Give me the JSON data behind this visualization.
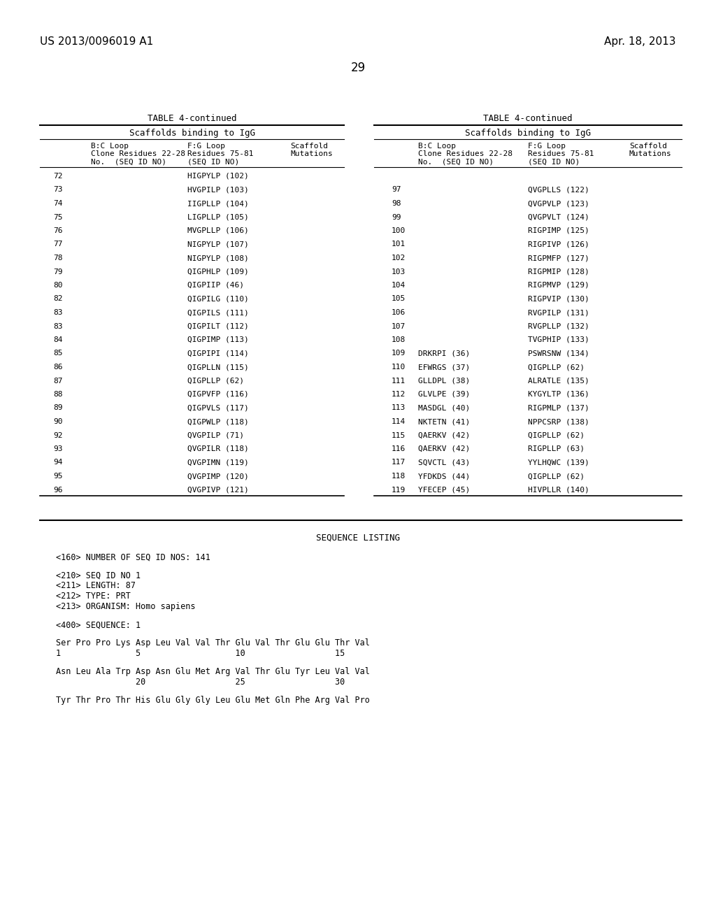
{
  "header_left": "US 2013/0096019 A1",
  "header_right": "Apr. 18, 2013",
  "page_number": "29",
  "table_title": "TABLE 4-continued",
  "table_subtitle": "Scaffolds binding to IgG",
  "left_table_rows": [
    [
      "72",
      "",
      "HIGPYLP (102)",
      ""
    ],
    [
      "73",
      "",
      "HVGPILP (103)",
      ""
    ],
    [
      "74",
      "",
      "IIGPLLP (104)",
      ""
    ],
    [
      "75",
      "",
      "LIGPLLP (105)",
      ""
    ],
    [
      "76",
      "",
      "MVGPLLP (106)",
      ""
    ],
    [
      "77",
      "",
      "NIGPYLP (107)",
      ""
    ],
    [
      "78",
      "",
      "NIGPYLP (108)",
      ""
    ],
    [
      "79",
      "",
      "QIGPHLP (109)",
      ""
    ],
    [
      "80",
      "",
      "QIGPIIP (46)",
      ""
    ],
    [
      "82",
      "",
      "QIGPILG (110)",
      ""
    ],
    [
      "83",
      "",
      "QIGPILS (111)",
      ""
    ],
    [
      "83",
      "",
      "QIGPILT (112)",
      ""
    ],
    [
      "84",
      "",
      "QIGPIMP (113)",
      ""
    ],
    [
      "85",
      "",
      "QIGPIPI (114)",
      ""
    ],
    [
      "86",
      "",
      "QIGPLLN (115)",
      ""
    ],
    [
      "87",
      "",
      "QIGPLLP (62)",
      ""
    ],
    [
      "88",
      "",
      "QIGPVFP (116)",
      ""
    ],
    [
      "89",
      "",
      "QIGPVLS (117)",
      ""
    ],
    [
      "90",
      "",
      "QIGPWLP (118)",
      ""
    ],
    [
      "92",
      "",
      "QVGPILP (71)",
      ""
    ],
    [
      "93",
      "",
      "QVGPILR (118)",
      ""
    ],
    [
      "94",
      "",
      "QVGPIMN (119)",
      ""
    ],
    [
      "95",
      "",
      "QVGPIMP (120)",
      ""
    ],
    [
      "96",
      "",
      "QVGPIVP (121)",
      ""
    ]
  ],
  "right_table_rows": [
    [
      "97",
      "",
      "QVGPLLS (122)",
      ""
    ],
    [
      "98",
      "",
      "QVGPVLP (123)",
      ""
    ],
    [
      "99",
      "",
      "QVGPVLT (124)",
      ""
    ],
    [
      "100",
      "",
      "RIGPIMP (125)",
      ""
    ],
    [
      "101",
      "",
      "RIGPIVP (126)",
      ""
    ],
    [
      "102",
      "",
      "RIGPMFP (127)",
      ""
    ],
    [
      "103",
      "",
      "RIGPMIP (128)",
      ""
    ],
    [
      "104",
      "",
      "RIGPMVP (129)",
      ""
    ],
    [
      "105",
      "",
      "RIGPVIP (130)",
      ""
    ],
    [
      "106",
      "",
      "RVGPILP (131)",
      ""
    ],
    [
      "107",
      "",
      "RVGPLLP (132)",
      ""
    ],
    [
      "108",
      "",
      "TVGPHIP (133)",
      ""
    ],
    [
      "109",
      "DRKRPI (36)",
      "PSWRSNW (134)",
      ""
    ],
    [
      "110",
      "EFWRGS (37)",
      "QIGPLLP (62)",
      ""
    ],
    [
      "111",
      "GLLDPL (38)",
      "ALRATLE (135)",
      ""
    ],
    [
      "112",
      "GLVLPE (39)",
      "KYGYLTP (136)",
      ""
    ],
    [
      "113",
      "MASDGL (40)",
      "RIGPMLP (137)",
      ""
    ],
    [
      "114",
      "NKTETN (41)",
      "NPPCSRP (138)",
      ""
    ],
    [
      "115",
      "QAERKV (42)",
      "QIGPLLP (62)",
      ""
    ],
    [
      "116",
      "QAERKV (42)",
      "RIGPLLP (63)",
      ""
    ],
    [
      "117",
      "SQVCTL (43)",
      "YYLHQWC (139)",
      ""
    ],
    [
      "118",
      "YFDKDS (44)",
      "QIGPLLP (62)",
      ""
    ],
    [
      "119",
      "YFECEP (45)",
      "HIVPLLR (140)",
      ""
    ]
  ],
  "sequence_listing_title": "SEQUENCE LISTING",
  "sequence_lines": [
    "<160> NUMBER OF SEQ ID NOS: 141",
    "",
    "<210> SEQ ID NO 1",
    "<211> LENGTH: 87",
    "<212> TYPE: PRT",
    "<213> ORGANISM: Homo sapiens",
    "",
    "<400> SEQUENCE: 1",
    "",
    "Ser Pro Pro Lys Asp Leu Val Val Thr Glu Val Thr Glu Glu Thr Val",
    "1               5                   10                  15",
    "",
    "Asn Leu Ala Trp Asp Asn Glu Met Arg Val Thr Glu Tyr Leu Val Val",
    "                20                  25                  30",
    "",
    "Tyr Thr Pro Thr His Glu Gly Gly Leu Glu Met Gln Phe Arg Val Pro"
  ],
  "bg_color": "#ffffff"
}
